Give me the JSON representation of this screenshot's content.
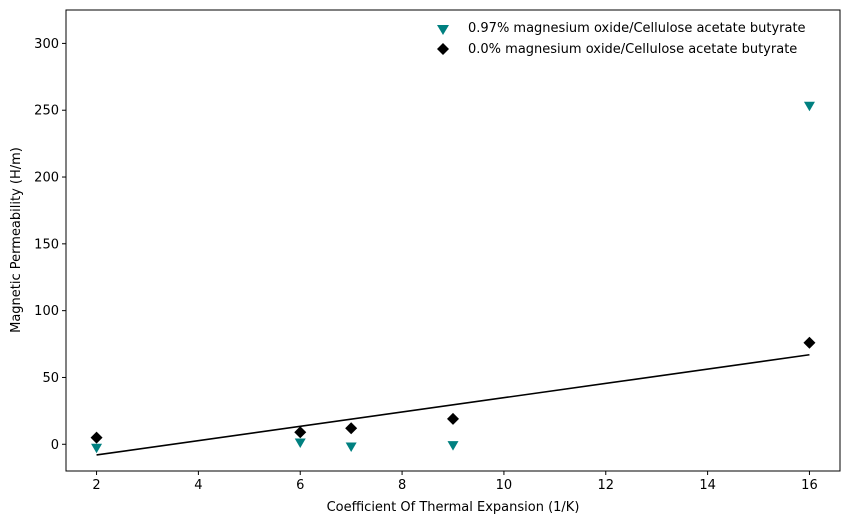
{
  "chart_data": {
    "type": "scatter",
    "title": "",
    "xlabel": "Coefficient Of Thermal Expansion (1/K)",
    "ylabel": "Magnetic Permeability (H/m)",
    "xlim": [
      1.4,
      16.6
    ],
    "ylim": [
      -20,
      325
    ],
    "x_ticks": [
      2,
      4,
      6,
      8,
      10,
      12,
      14,
      16
    ],
    "y_ticks": [
      0,
      50,
      100,
      150,
      200,
      250,
      300
    ],
    "grid": false,
    "legend_position": "top-right",
    "series": [
      {
        "name": "0.97% magnesium oxide/Cellulose acetate butyrate",
        "marker": "triangle-down",
        "color": "#008080",
        "points": [
          [
            2,
            -3
          ],
          [
            6,
            1
          ],
          [
            7,
            -2
          ],
          [
            9,
            -1
          ],
          [
            16,
            253
          ]
        ]
      },
      {
        "name": "0.0% magnesium oxide/Cellulose acetate butyrate",
        "marker": "diamond",
        "color": "#000000",
        "points": [
          [
            2,
            5
          ],
          [
            6,
            9
          ],
          [
            7,
            12
          ],
          [
            9,
            19
          ],
          [
            16,
            76
          ]
        ]
      }
    ],
    "fit_line": {
      "color": "#000000",
      "points": [
        [
          2,
          -8
        ],
        [
          16,
          67
        ]
      ]
    }
  }
}
